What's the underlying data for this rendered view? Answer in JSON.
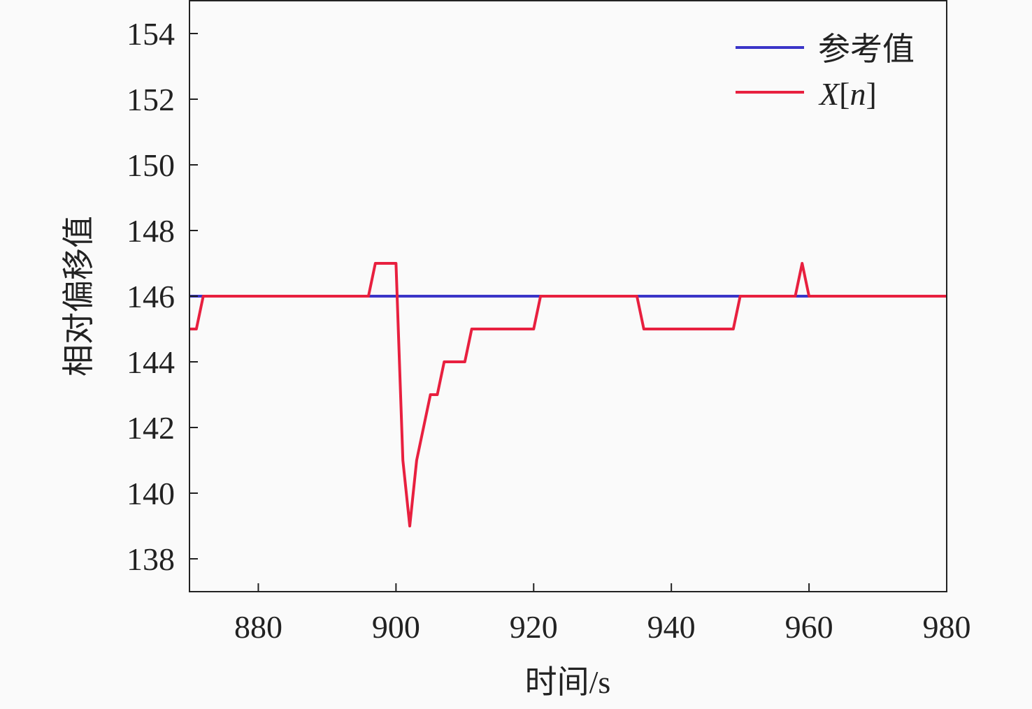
{
  "chart_data": {
    "type": "line",
    "xlabel": "时间/s",
    "ylabel": "相对偏移值",
    "xlim": [
      870,
      980
    ],
    "ylim": [
      137,
      155
    ],
    "xticks": [
      880,
      900,
      920,
      940,
      960,
      980
    ],
    "yticks": [
      138,
      140,
      142,
      144,
      146,
      148,
      150,
      152,
      154
    ],
    "grid": false,
    "legend_position": "top-right",
    "series": [
      {
        "name": "参考值",
        "color": "#3a35c8",
        "x": [
          870,
          980
        ],
        "y": [
          146,
          146
        ]
      },
      {
        "name": "X[n]",
        "color": "#e8203f",
        "x": [
          870,
          871,
          872,
          896,
          897,
          900,
          901,
          902,
          903,
          904,
          905,
          906,
          907,
          910,
          911,
          920,
          921,
          935,
          936,
          949,
          950,
          958,
          959,
          960,
          980
        ],
        "y": [
          145,
          145,
          146,
          146,
          147,
          147,
          141,
          139,
          141,
          142,
          143,
          143,
          144,
          144,
          145,
          145,
          146,
          146,
          145,
          145,
          146,
          146,
          147,
          146,
          146
        ]
      }
    ]
  }
}
